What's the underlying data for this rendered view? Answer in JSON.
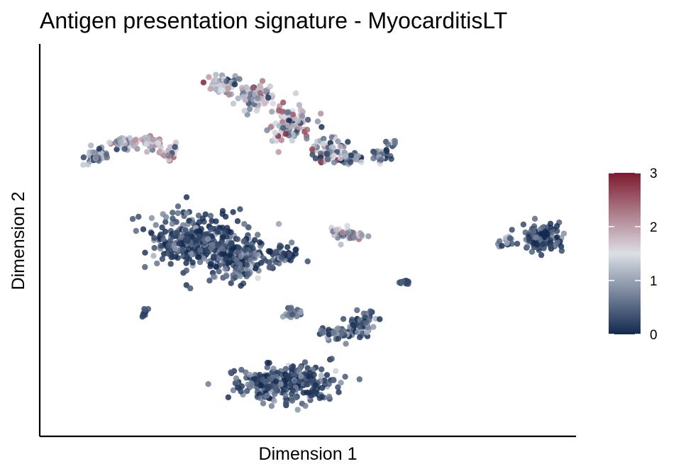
{
  "chart_data": {
    "type": "scatter",
    "title": "Antigen presentation signature - MyocarditisLT",
    "xlabel": "Dimension 1",
    "ylabel": "Dimension 2",
    "xlim": [
      0,
      100
    ],
    "ylim": [
      0,
      100
    ],
    "axis_ticks_shown": false,
    "grid": false,
    "legend": {
      "position": "right",
      "type": "colorbar",
      "ticks": [
        0,
        1,
        2,
        3
      ],
      "tick_labels": [
        "0",
        "1",
        "2",
        "3"
      ],
      "range": [
        0,
        3
      ]
    },
    "colors": {
      "low": "#12294f",
      "mid": "#dcdfe6",
      "high": "#7e1a2f"
    },
    "clusters": [
      {
        "cx": 10.2,
        "cy": 73.0,
        "n": 45,
        "mean": 0.75,
        "spread": 0.55
      },
      {
        "cx": 15.5,
        "cy": 76.5,
        "n": 45,
        "mean": 1.05,
        "spread": 0.6
      },
      {
        "cx": 20.8,
        "cy": 76.8,
        "n": 40,
        "mean": 1.45,
        "spread": 0.6
      },
      {
        "cx": 24.0,
        "cy": 73.5,
        "n": 35,
        "mean": 1.6,
        "spread": 0.6
      },
      {
        "cx": 34.0,
        "cy": 92.5,
        "n": 60,
        "mean": 1.5,
        "spread": 0.65
      },
      {
        "cx": 40.5,
        "cy": 89.0,
        "n": 90,
        "mean": 1.3,
        "spread": 0.65
      },
      {
        "cx": 47.0,
        "cy": 82.0,
        "n": 100,
        "mean": 1.35,
        "spread": 0.7
      },
      {
        "cx": 54.0,
        "cy": 74.5,
        "n": 60,
        "mean": 1.15,
        "spread": 0.7
      },
      {
        "cx": 58.5,
        "cy": 72.0,
        "n": 35,
        "mean": 0.8,
        "spread": 0.55
      },
      {
        "cx": 64.0,
        "cy": 73.0,
        "n": 35,
        "mean": 0.6,
        "spread": 0.5
      },
      {
        "cx": 66.0,
        "cy": 76.5,
        "n": 8,
        "mean": 0.5,
        "spread": 0.4
      },
      {
        "cx": 29.5,
        "cy": 49.5,
        "n": 360,
        "mean": 0.3,
        "spread": 0.35
      },
      {
        "cx": 37.5,
        "cy": 45.0,
        "n": 130,
        "mean": 0.35,
        "spread": 0.4
      },
      {
        "cx": 45.5,
        "cy": 46.0,
        "n": 55,
        "mean": 0.35,
        "spread": 0.4
      },
      {
        "cx": 57.5,
        "cy": 51.5,
        "n": 45,
        "mean": 1.2,
        "spread": 0.6
      },
      {
        "cx": 68.5,
        "cy": 38.5,
        "n": 14,
        "mean": 0.2,
        "spread": 0.3
      },
      {
        "cx": 94.5,
        "cy": 50.5,
        "n": 140,
        "mean": 0.25,
        "spread": 0.35
      },
      {
        "cx": 87.5,
        "cy": 49.5,
        "n": 14,
        "mean": 0.6,
        "spread": 0.5
      },
      {
        "cx": 19.0,
        "cy": 30.5,
        "n": 10,
        "mean": 0.25,
        "spread": 0.3
      },
      {
        "cx": 47.5,
        "cy": 30.0,
        "n": 18,
        "mean": 0.4,
        "spread": 0.4
      },
      {
        "cx": 55.5,
        "cy": 24.5,
        "n": 40,
        "mean": 0.5,
        "spread": 0.5
      },
      {
        "cx": 60.5,
        "cy": 27.0,
        "n": 70,
        "mean": 0.4,
        "spread": 0.45
      },
      {
        "cx": 46.0,
        "cy": 11.0,
        "n": 320,
        "mean": 0.35,
        "spread": 0.4
      }
    ]
  }
}
